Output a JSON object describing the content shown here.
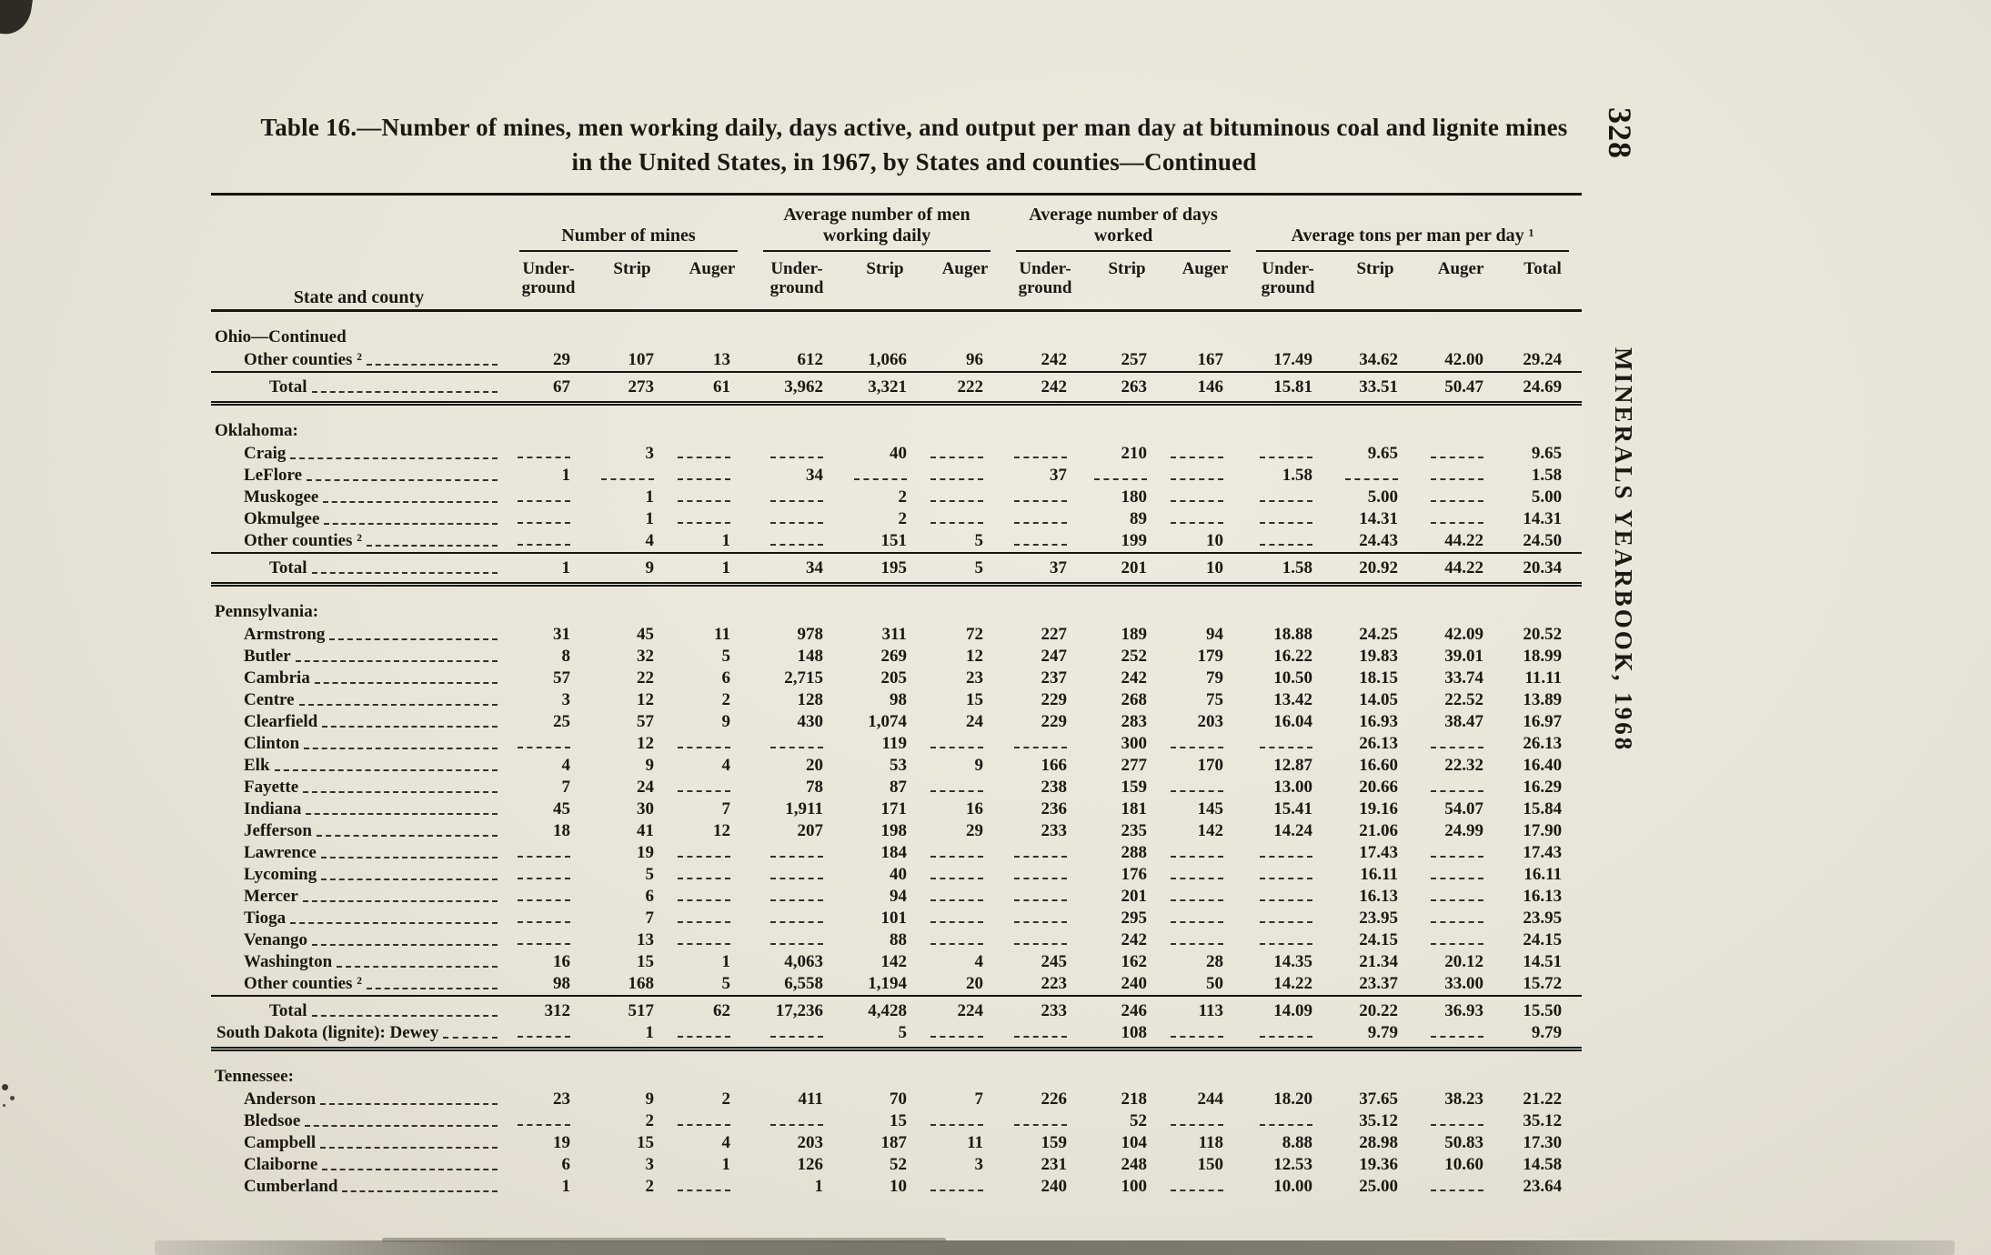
{
  "page": {
    "number": "328",
    "side_text": "MINERALS YEARBOOK, 1968"
  },
  "title": {
    "line1": "Table 16.—Number of mines, men working daily, days active, and output per man day at bituminous coal and lignite mines",
    "line2": "in the United States, in 1967, by States and counties—Continued"
  },
  "table": {
    "stub_header": "State and county",
    "groups": [
      {
        "label": "Number of mines",
        "span": 3
      },
      {
        "label": "Average number of men working daily",
        "span": 3
      },
      {
        "label": "Average number of days worked",
        "span": 3
      },
      {
        "label": "Average tons per man per day ¹",
        "span": 4
      }
    ],
    "subheaders": [
      "Under-ground",
      "Strip",
      "Auger",
      "Under-ground",
      "Strip",
      "Auger",
      "Under-ground",
      "Strip",
      "Auger",
      "Under-ground",
      "Strip",
      "Auger",
      "Total"
    ],
    "rows": [
      {
        "type": "section",
        "label": "Ohio—Continued"
      },
      {
        "type": "data",
        "label": "Other counties ²",
        "values": [
          "29",
          "107",
          "13",
          "612",
          "1,066",
          "96",
          "242",
          "257",
          "167",
          "17.49",
          "34.62",
          "42.00",
          "29.24"
        ]
      },
      {
        "type": "total",
        "label": "Total",
        "topline": true,
        "rule": "double",
        "values": [
          "67",
          "273",
          "61",
          "3,962",
          "3,321",
          "222",
          "242",
          "263",
          "146",
          "15.81",
          "33.51",
          "50.47",
          "24.69"
        ]
      },
      {
        "type": "section",
        "label": "Oklahoma:"
      },
      {
        "type": "data",
        "label": "Craig",
        "values": [
          "",
          "3",
          "",
          "",
          "40",
          "",
          "",
          "210",
          "",
          "",
          "9.65",
          "",
          "9.65"
        ]
      },
      {
        "type": "data",
        "label": "LeFlore",
        "values": [
          "1",
          "",
          "",
          "34",
          "",
          "",
          "37",
          "",
          "",
          "1.58",
          "",
          "",
          "1.58"
        ]
      },
      {
        "type": "data",
        "label": "Muskogee",
        "values": [
          "",
          "1",
          "",
          "",
          "2",
          "",
          "",
          "180",
          "",
          "",
          "5.00",
          "",
          "5.00"
        ]
      },
      {
        "type": "data",
        "label": "Okmulgee",
        "values": [
          "",
          "1",
          "",
          "",
          "2",
          "",
          "",
          "89",
          "",
          "",
          "14.31",
          "",
          "14.31"
        ]
      },
      {
        "type": "data",
        "label": "Other counties ²",
        "values": [
          "",
          "4",
          "1",
          "",
          "151",
          "5",
          "",
          "199",
          "10",
          "",
          "24.43",
          "44.22",
          "24.50"
        ]
      },
      {
        "type": "total",
        "label": "Total",
        "topline": true,
        "rule": "double",
        "values": [
          "1",
          "9",
          "1",
          "34",
          "195",
          "5",
          "37",
          "201",
          "10",
          "1.58",
          "20.92",
          "44.22",
          "20.34"
        ]
      },
      {
        "type": "section",
        "label": "Pennsylvania:"
      },
      {
        "type": "data",
        "label": "Armstrong",
        "values": [
          "31",
          "45",
          "11",
          "978",
          "311",
          "72",
          "227",
          "189",
          "94",
          "18.88",
          "24.25",
          "42.09",
          "20.52"
        ]
      },
      {
        "type": "data",
        "label": "Butler",
        "values": [
          "8",
          "32",
          "5",
          "148",
          "269",
          "12",
          "247",
          "252",
          "179",
          "16.22",
          "19.83",
          "39.01",
          "18.99"
        ]
      },
      {
        "type": "data",
        "label": "Cambria",
        "values": [
          "57",
          "22",
          "6",
          "2,715",
          "205",
          "23",
          "237",
          "242",
          "79",
          "10.50",
          "18.15",
          "33.74",
          "11.11"
        ]
      },
      {
        "type": "data",
        "label": "Centre",
        "values": [
          "3",
          "12",
          "2",
          "128",
          "98",
          "15",
          "229",
          "268",
          "75",
          "13.42",
          "14.05",
          "22.52",
          "13.89"
        ]
      },
      {
        "type": "data",
        "label": "Clearfield",
        "values": [
          "25",
          "57",
          "9",
          "430",
          "1,074",
          "24",
          "229",
          "283",
          "203",
          "16.04",
          "16.93",
          "38.47",
          "16.97"
        ]
      },
      {
        "type": "data",
        "label": "Clinton",
        "values": [
          "",
          "12",
          "",
          "",
          "119",
          "",
          "",
          "300",
          "",
          "",
          "26.13",
          "",
          "26.13"
        ]
      },
      {
        "type": "data",
        "label": "Elk",
        "values": [
          "4",
          "9",
          "4",
          "20",
          "53",
          "9",
          "166",
          "277",
          "170",
          "12.87",
          "16.60",
          "22.32",
          "16.40"
        ]
      },
      {
        "type": "data",
        "label": "Fayette",
        "values": [
          "7",
          "24",
          "",
          "78",
          "87",
          "",
          "238",
          "159",
          "",
          "13.00",
          "20.66",
          "",
          "16.29"
        ]
      },
      {
        "type": "data",
        "label": "Indiana",
        "values": [
          "45",
          "30",
          "7",
          "1,911",
          "171",
          "16",
          "236",
          "181",
          "145",
          "15.41",
          "19.16",
          "54.07",
          "15.84"
        ]
      },
      {
        "type": "data",
        "label": "Jefferson",
        "values": [
          "18",
          "41",
          "12",
          "207",
          "198",
          "29",
          "233",
          "235",
          "142",
          "14.24",
          "21.06",
          "24.99",
          "17.90"
        ]
      },
      {
        "type": "data",
        "label": "Lawrence",
        "values": [
          "",
          "19",
          "",
          "",
          "184",
          "",
          "",
          "288",
          "",
          "",
          "17.43",
          "",
          "17.43"
        ]
      },
      {
        "type": "data",
        "label": "Lycoming",
        "values": [
          "",
          "5",
          "",
          "",
          "40",
          "",
          "",
          "176",
          "",
          "",
          "16.11",
          "",
          "16.11"
        ]
      },
      {
        "type": "data",
        "label": "Mercer",
        "values": [
          "",
          "6",
          "",
          "",
          "94",
          "",
          "",
          "201",
          "",
          "",
          "16.13",
          "",
          "16.13"
        ]
      },
      {
        "type": "data",
        "label": "Tioga",
        "values": [
          "",
          "7",
          "",
          "",
          "101",
          "",
          "",
          "295",
          "",
          "",
          "23.95",
          "",
          "23.95"
        ]
      },
      {
        "type": "data",
        "label": "Venango",
        "values": [
          "",
          "13",
          "",
          "",
          "88",
          "",
          "",
          "242",
          "",
          "",
          "24.15",
          "",
          "24.15"
        ]
      },
      {
        "type": "data",
        "label": "Washington",
        "values": [
          "16",
          "15",
          "1",
          "4,063",
          "142",
          "4",
          "245",
          "162",
          "28",
          "14.35",
          "21.34",
          "20.12",
          "14.51"
        ]
      },
      {
        "type": "data",
        "label": "Other counties ²",
        "values": [
          "98",
          "168",
          "5",
          "6,558",
          "1,194",
          "20",
          "223",
          "240",
          "50",
          "14.22",
          "23.37",
          "33.00",
          "15.72"
        ]
      },
      {
        "type": "total",
        "label": "Total",
        "topline": true,
        "values": [
          "312",
          "517",
          "62",
          "17,236",
          "4,428",
          "224",
          "233",
          "246",
          "113",
          "14.09",
          "20.22",
          "36.93",
          "15.50"
        ]
      },
      {
        "type": "flush",
        "label": "South Dakota (lignite): Dewey",
        "rule": "double",
        "values": [
          "",
          "1",
          "",
          "",
          "5",
          "",
          "",
          "108",
          "",
          "",
          "9.79",
          "",
          "9.79"
        ]
      },
      {
        "type": "section",
        "label": "Tennessee:"
      },
      {
        "type": "data",
        "label": "Anderson",
        "values": [
          "23",
          "9",
          "2",
          "411",
          "70",
          "7",
          "226",
          "218",
          "244",
          "18.20",
          "37.65",
          "38.23",
          "21.22"
        ]
      },
      {
        "type": "data",
        "label": "Bledsoe",
        "values": [
          "",
          "2",
          "",
          "",
          "15",
          "",
          "",
          "52",
          "",
          "",
          "35.12",
          "",
          "35.12"
        ]
      },
      {
        "type": "data",
        "label": "Campbell",
        "values": [
          "19",
          "15",
          "4",
          "203",
          "187",
          "11",
          "159",
          "104",
          "118",
          "8.88",
          "28.98",
          "50.83",
          "17.30"
        ]
      },
      {
        "type": "data",
        "label": "Claiborne",
        "values": [
          "6",
          "3",
          "1",
          "126",
          "52",
          "3",
          "231",
          "248",
          "150",
          "12.53",
          "19.36",
          "10.60",
          "14.58"
        ]
      },
      {
        "type": "data",
        "label": "Cumberland",
        "values": [
          "1",
          "2",
          "",
          "1",
          "10",
          "",
          "240",
          "100",
          "",
          "10.00",
          "25.00",
          "",
          "23.64"
        ]
      }
    ]
  }
}
